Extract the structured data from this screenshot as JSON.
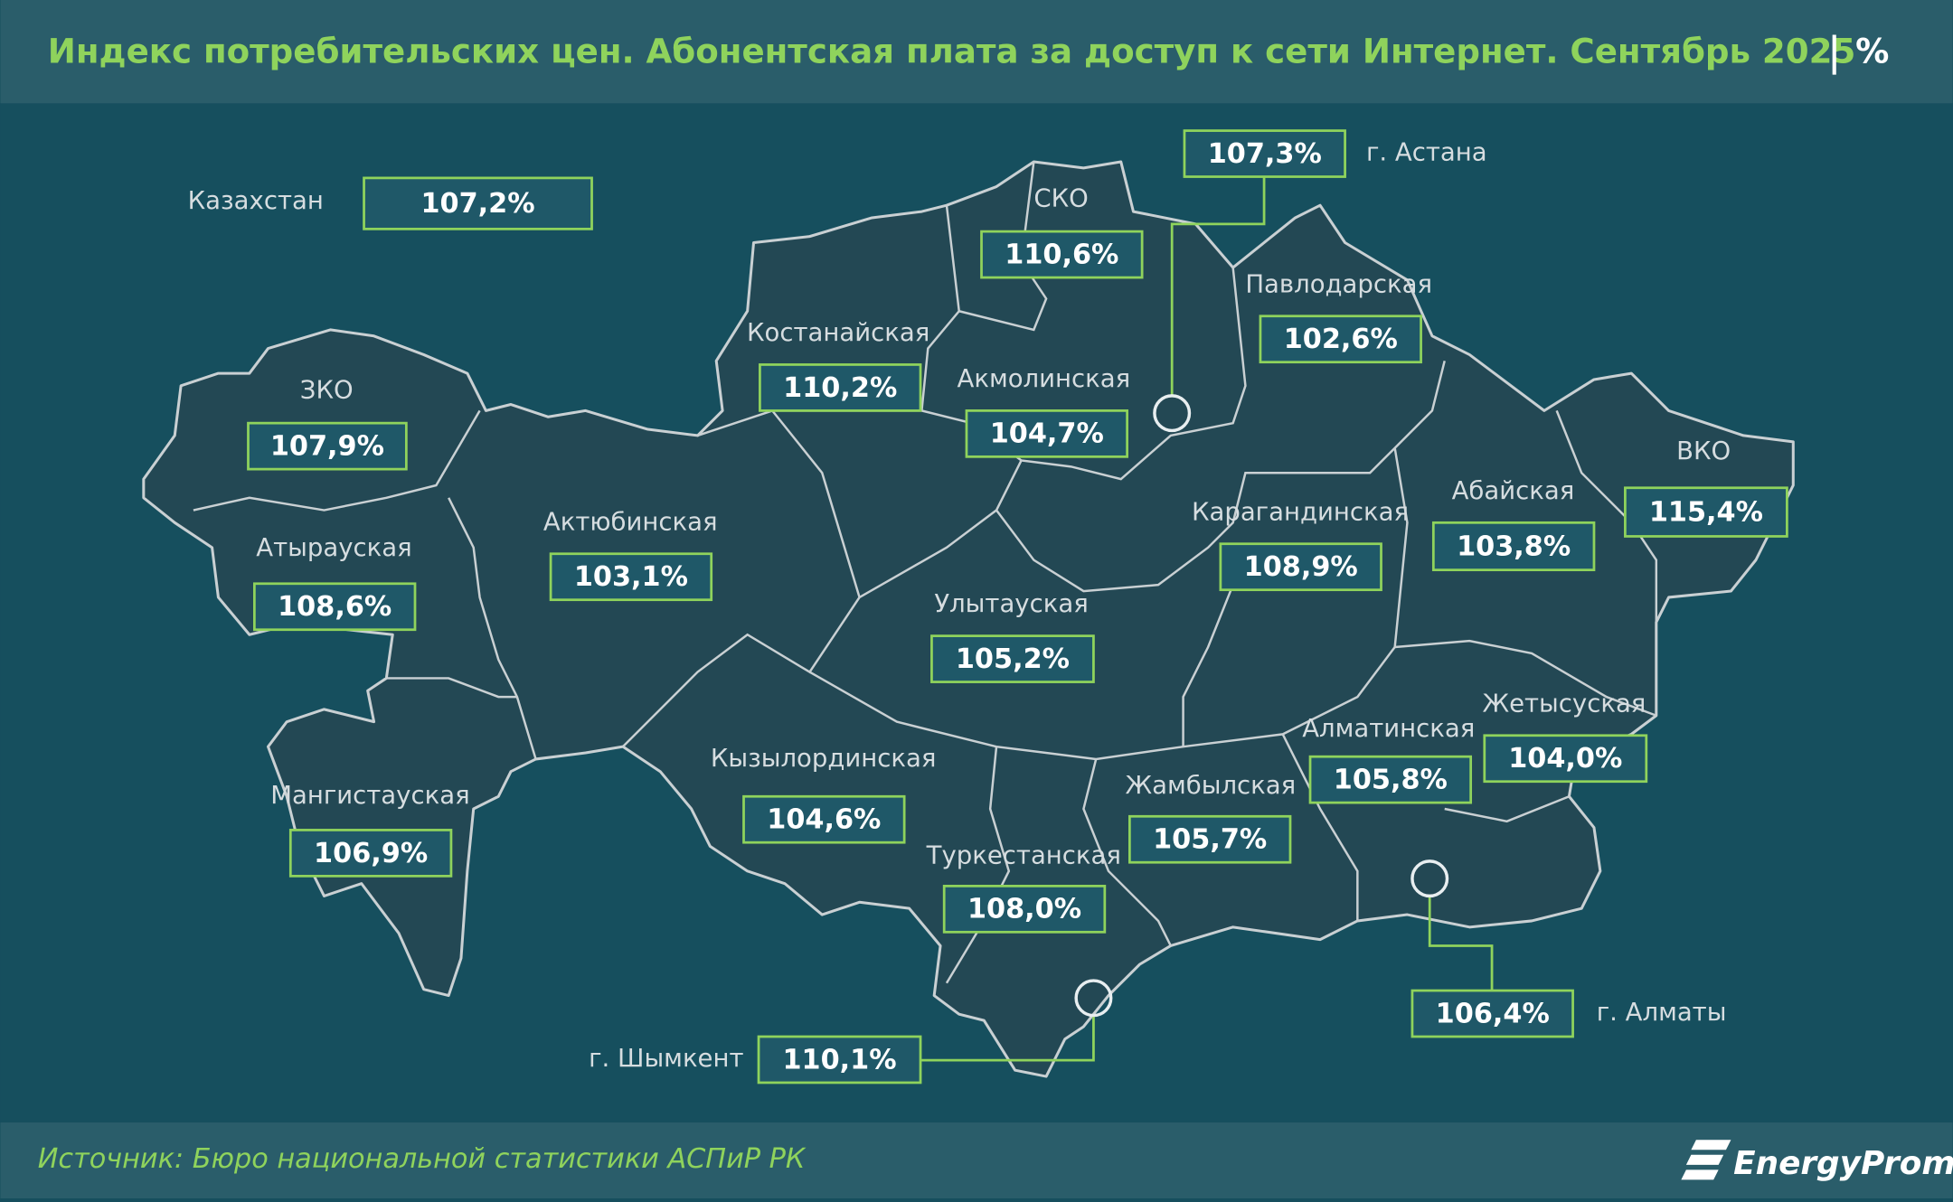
{
  "header": {
    "title": "Индекс потребительских цен. Абонентская плата за доступ к сети Интернет. Сентябрь 2025",
    "unit": "%"
  },
  "regions": [
    {
      "name": "Казахстан",
      "value": "107,2%"
    },
    {
      "name": "г. Астана",
      "value": "107,3%"
    },
    {
      "name": "СКО",
      "value": "110,6%"
    },
    {
      "name": "Павлодарская",
      "value": "102,6%"
    },
    {
      "name": "Костанайская",
      "value": "110,2%"
    },
    {
      "name": "Акмолинская",
      "value": "104,7%"
    },
    {
      "name": "ЗКО",
      "value": "107,9%"
    },
    {
      "name": "ВКО",
      "value": "115,4%"
    },
    {
      "name": "Абайская",
      "value": "103,8%"
    },
    {
      "name": "Актюбинская",
      "value": "103,1%"
    },
    {
      "name": "Карагандинская",
      "value": "108,9%"
    },
    {
      "name": "Атырауская",
      "value": "108,6%"
    },
    {
      "name": "Улытауская",
      "value": "105,2%"
    },
    {
      "name": "Жетысуская",
      "value": "104,0%"
    },
    {
      "name": "Алматинская",
      "value": "105,8%"
    },
    {
      "name": "Кызылординская",
      "value": "104,6%"
    },
    {
      "name": "Жамбылская",
      "value": "105,7%"
    },
    {
      "name": "Мангистауская",
      "value": "106,9%"
    },
    {
      "name": "Туркестанская",
      "value": "108,0%"
    },
    {
      "name": "г. Алматы",
      "value": "106,4%"
    },
    {
      "name": "г. Шымкент",
      "value": "110,1%"
    }
  ],
  "footer": {
    "source": "Источник: Бюро национальной статистики АСПиР РК",
    "brand": "EnergyProm"
  }
}
